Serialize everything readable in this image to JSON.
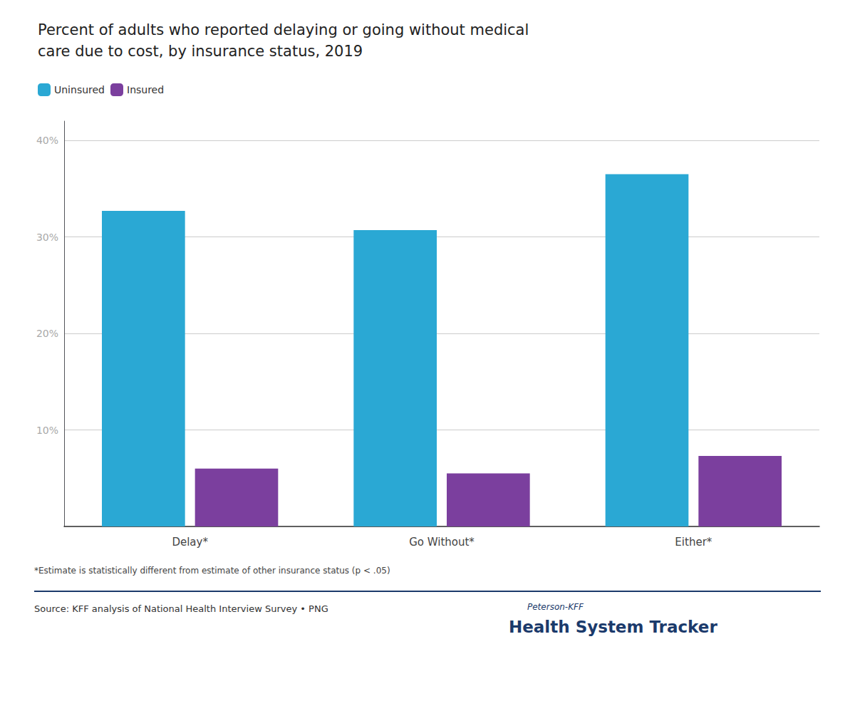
{
  "chart_data": {
    "type": "bar",
    "title": "Percent of adults who reported delaying or going without medical\ncare due to cost, by insurance status, 2019",
    "categories": [
      "Delay*",
      "Go Without*",
      "Either*"
    ],
    "series": [
      {
        "name": "Uninsured",
        "color": "#2AA8D4",
        "values": [
          32.7,
          30.7,
          36.5
        ]
      },
      {
        "name": "Insured",
        "color": "#7B3F9E",
        "values": [
          6.0,
          5.5,
          7.3
        ]
      }
    ],
    "ylim": [
      0,
      42
    ],
    "yticks": [
      {
        "value": 0,
        "label": ""
      },
      {
        "value": 10,
        "label": "10%"
      },
      {
        "value": 20,
        "label": "20%"
      },
      {
        "value": 30,
        "label": "30%"
      },
      {
        "value": 40,
        "label": "40%"
      }
    ],
    "grid": true,
    "legend": "upper left",
    "annotations": [
      "*Estimate is statistically different from estimate of other insurance status (p < .05)",
      "Source: KFF analysis of National Health Interview Survey • PNG",
      "Peterson-KFF",
      "Health System Tracker"
    ]
  }
}
